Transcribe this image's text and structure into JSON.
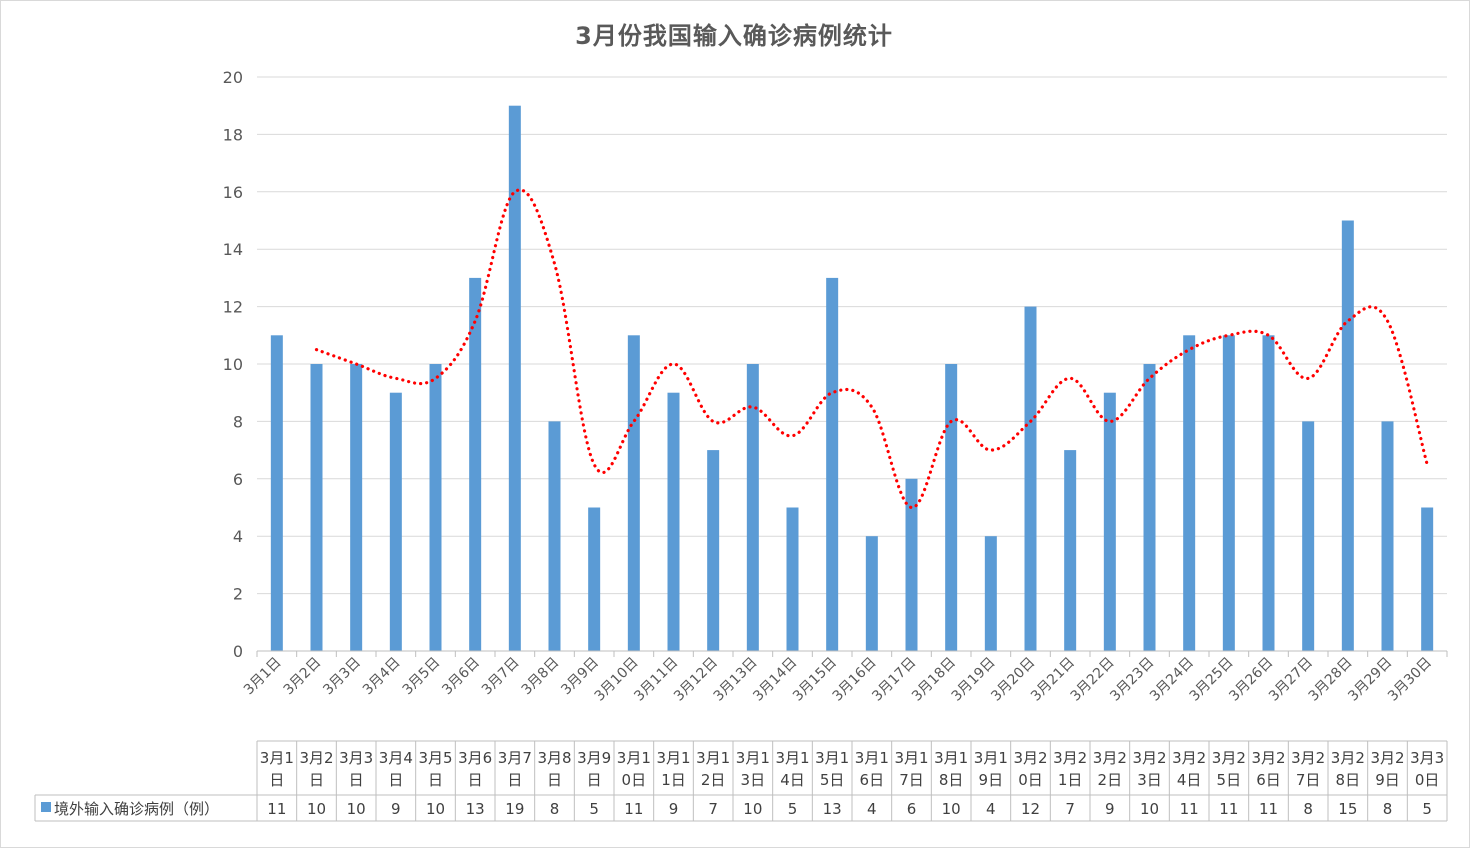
{
  "chart_data": {
    "type": "bar",
    "title": "3月份我国输入确诊病例统计",
    "categories": [
      "3月1日",
      "3月2日",
      "3月3日",
      "3月4日",
      "3月5日",
      "3月6日",
      "3月7日",
      "3月8日",
      "3月9日",
      "3月10日",
      "3月11日",
      "3月12日",
      "3月13日",
      "3月14日",
      "3月15日",
      "3月16日",
      "3月17日",
      "3月18日",
      "3月19日",
      "3月20日",
      "3月21日",
      "3月22日",
      "3月23日",
      "3月24日",
      "3月25日",
      "3月26日",
      "3月27日",
      "3月28日",
      "3月29日",
      "3月30日"
    ],
    "series": [
      {
        "name": "境外输入确诊病例（例）",
        "type": "bar",
        "color": "#5b9bd5",
        "values": [
          11,
          10,
          10,
          9,
          10,
          13,
          19,
          8,
          5,
          11,
          9,
          7,
          10,
          5,
          13,
          4,
          6,
          10,
          4,
          12,
          7,
          9,
          10,
          11,
          11,
          11,
          8,
          15,
          8,
          5
        ]
      },
      {
        "type": "line",
        "style": "dotted-smooth",
        "color": "#ff0000",
        "values": [
          null,
          10.5,
          10,
          9.5,
          9.5,
          11.5,
          16,
          13.5,
          6.5,
          8,
          10,
          8,
          8.5,
          7.5,
          9,
          8.5,
          5,
          8,
          7,
          8,
          9.5,
          8,
          9.5,
          10.5,
          11,
          11,
          9.5,
          11.5,
          11.5,
          6.5
        ]
      }
    ],
    "ylim": [
      0,
      20
    ],
    "yticks": [
      0,
      2,
      4,
      6,
      8,
      10,
      12,
      14,
      16,
      18,
      20
    ],
    "xlabel": "",
    "ylabel": "",
    "grid": true,
    "data_table": true,
    "table_header_labels": [
      [
        "3月1",
        "日"
      ],
      [
        "3月2",
        "日"
      ],
      [
        "3月3",
        "日"
      ],
      [
        "3月4",
        "日"
      ],
      [
        "3月5",
        "日"
      ],
      [
        "3月6",
        "日"
      ],
      [
        "3月7",
        "日"
      ],
      [
        "3月8",
        "日"
      ],
      [
        "3月9",
        "日"
      ],
      [
        "3月1",
        "0日"
      ],
      [
        "3月1",
        "1日"
      ],
      [
        "3月1",
        "2日"
      ],
      [
        "3月1",
        "3日"
      ],
      [
        "3月1",
        "4日"
      ],
      [
        "3月1",
        "5日"
      ],
      [
        "3月1",
        "6日"
      ],
      [
        "3月1",
        "7日"
      ],
      [
        "3月1",
        "8日"
      ],
      [
        "3月1",
        "9日"
      ],
      [
        "3月2",
        "0日"
      ],
      [
        "3月2",
        "1日"
      ],
      [
        "3月2",
        "2日"
      ],
      [
        "3月2",
        "3日"
      ],
      [
        "3月2",
        "4日"
      ],
      [
        "3月2",
        "5日"
      ],
      [
        "3月2",
        "6日"
      ],
      [
        "3月2",
        "7日"
      ],
      [
        "3月2",
        "8日"
      ],
      [
        "3月2",
        "9日"
      ],
      [
        "3月3",
        "0日"
      ]
    ]
  }
}
